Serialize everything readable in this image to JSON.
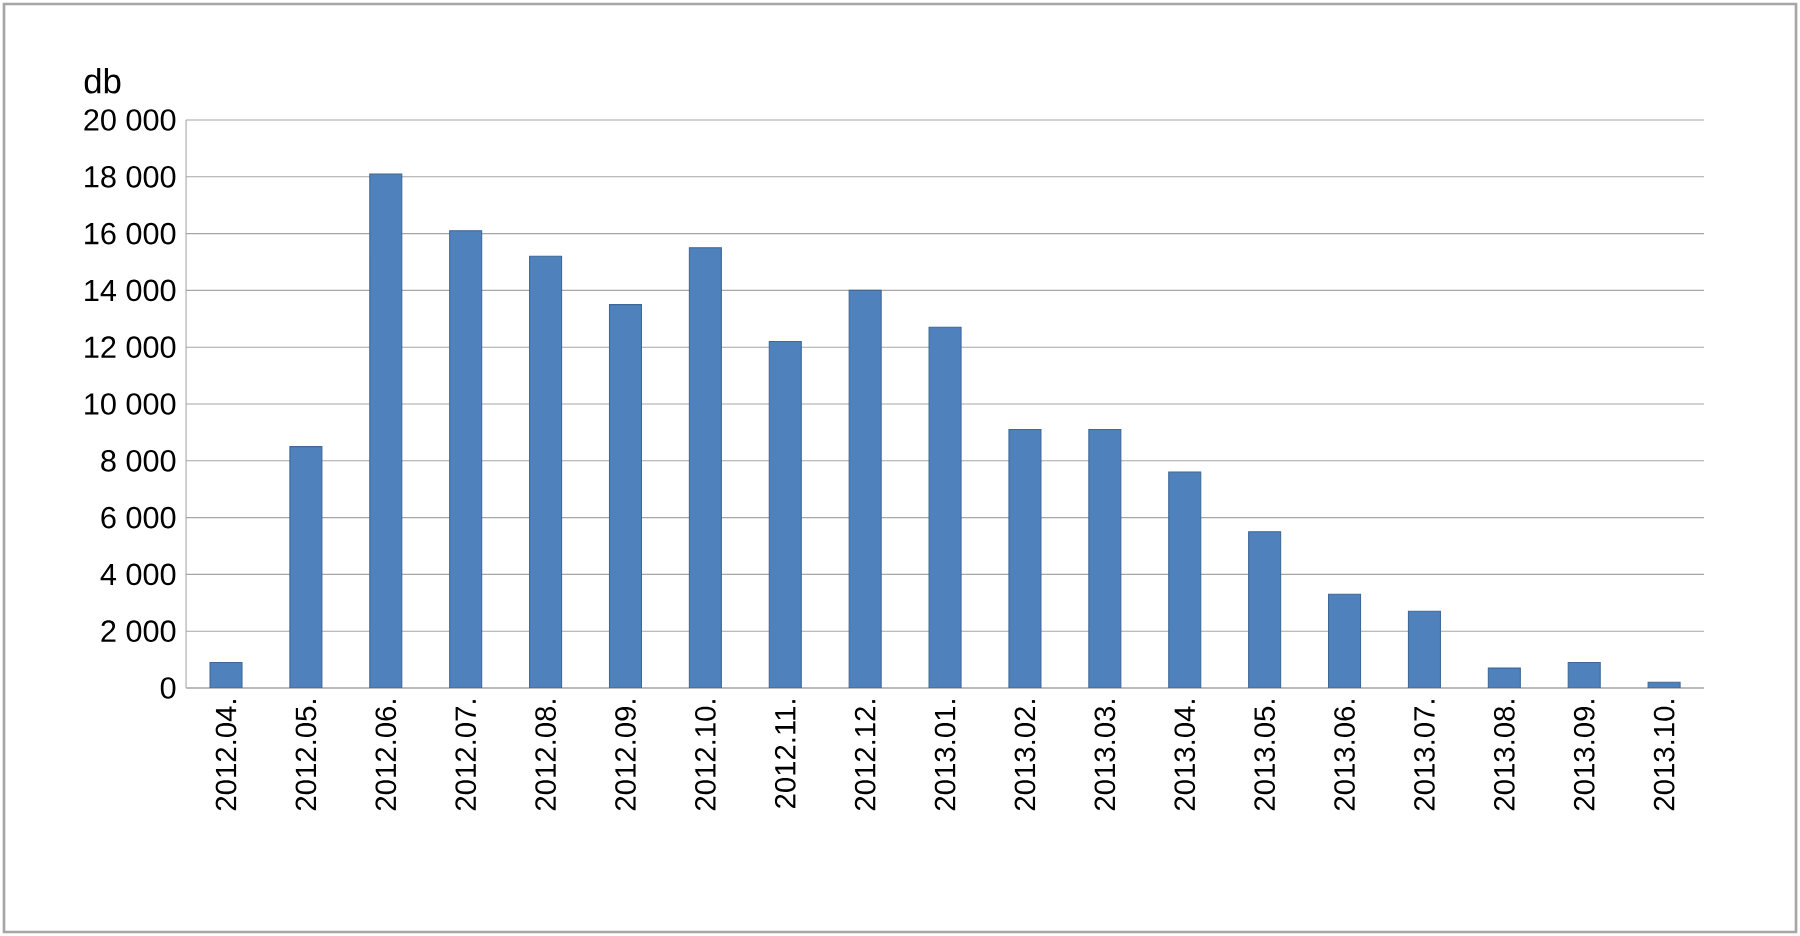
{
  "chart_data": {
    "type": "bar",
    "ylabel": "db",
    "categories": [
      "2012.04.",
      "2012.05.",
      "2012.06.",
      "2012.07.",
      "2012.08.",
      "2012.09.",
      "2012.10.",
      "2012.11.",
      "2012.12.",
      "2013.01.",
      "2013.02.",
      "2013.03.",
      "2013.04.",
      "2013.05.",
      "2013.06.",
      "2013.07.",
      "2013.08.",
      "2013.09.",
      "2013.10."
    ],
    "values": [
      900,
      8500,
      18100,
      16100,
      15200,
      13500,
      15500,
      12200,
      14000,
      12700,
      9100,
      9100,
      7600,
      5500,
      3300,
      2700,
      700,
      900,
      200
    ],
    "color": "#4f81bd",
    "ylim": [
      0,
      20000
    ],
    "yticks": [
      {
        "value": 0,
        "label": "0"
      },
      {
        "value": 2000,
        "label": "2 000"
      },
      {
        "value": 4000,
        "label": "4 000"
      },
      {
        "value": 6000,
        "label": "6 000"
      },
      {
        "value": 8000,
        "label": "8 000"
      },
      {
        "value": 10000,
        "label": "10 000"
      },
      {
        "value": 12000,
        "label": "12 000"
      },
      {
        "value": 14000,
        "label": "14 000"
      },
      {
        "value": 16000,
        "label": "16 000"
      },
      {
        "value": 18000,
        "label": "18 000"
      },
      {
        "value": 20000,
        "label": "20 000"
      }
    ],
    "grid": "y"
  }
}
